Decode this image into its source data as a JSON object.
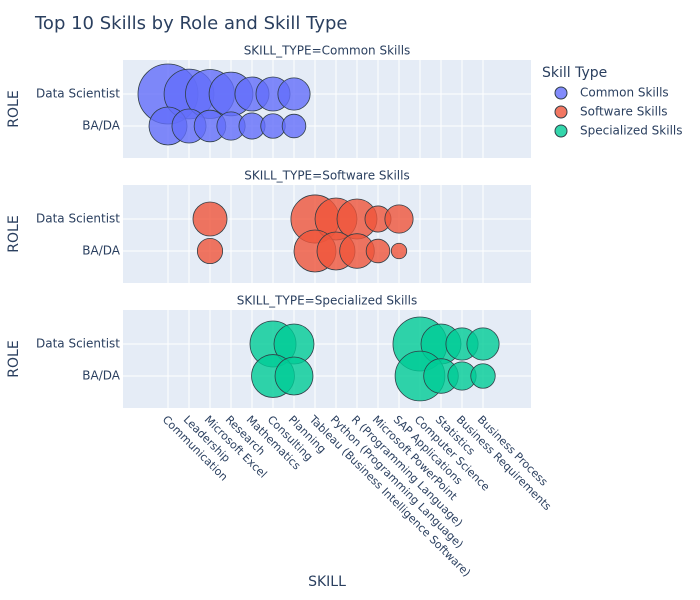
{
  "chart_data": {
    "type": "bubble",
    "title": "Top 10 Skills by Role and Skill Type",
    "x_label": "SKILL",
    "y_label": "ROLE",
    "legend_title": "Skill Type",
    "legend_position": "right",
    "grid": true,
    "categories": [
      "Communication",
      "Leadership",
      "Microsoft Excel",
      "Research",
      "Mathematics",
      "Consulting",
      "Planning",
      "Tableau (Business Intelligence Software)",
      "Python (Programming Language)",
      "R (Programming Language)",
      "Microsoft PowerPoint",
      "SAP Applications",
      "Computer Science",
      "Statistics",
      "Business Requirements",
      "Business Process"
    ],
    "roles": [
      "Data Scientist",
      "BA/DA"
    ],
    "series": [
      {
        "name": "Common Skills",
        "facet_title": "SKILL_TYPE=Common Skills",
        "color": "#636efa",
        "x": [
          "Communication",
          "Leadership",
          "Microsoft Excel",
          "Research",
          "Mathematics",
          "Consulting",
          "Planning",
          "Communication",
          "Leadership",
          "Microsoft Excel",
          "Research",
          "Mathematics",
          "Consulting",
          "Planning"
        ],
        "y": [
          "Data Scientist",
          "Data Scientist",
          "Data Scientist",
          "Data Scientist",
          "Data Scientist",
          "Data Scientist",
          "Data Scientist",
          "BA/DA",
          "BA/DA",
          "BA/DA",
          "BA/DA",
          "BA/DA",
          "BA/DA",
          "BA/DA"
        ],
        "size": [
          900,
          620,
          600,
          480,
          290,
          290,
          260,
          360,
          290,
          250,
          200,
          170,
          150,
          140
        ]
      },
      {
        "name": "Software Skills",
        "facet_title": "SKILL_TYPE=Software Skills",
        "color": "#ef553b",
        "x": [
          "Microsoft Excel",
          "Tableau (Business Intelligence Software)",
          "Python (Programming Language)",
          "R (Programming Language)",
          "Microsoft PowerPoint",
          "SAP Applications",
          "Microsoft Excel",
          "Tableau (Business Intelligence Software)",
          "Python (Programming Language)",
          "R (Programming Language)",
          "Microsoft PowerPoint",
          "SAP Applications"
        ],
        "y": [
          "Data Scientist",
          "Data Scientist",
          "Data Scientist",
          "Data Scientist",
          "Data Scientist",
          "Data Scientist",
          "BA/DA",
          "BA/DA",
          "BA/DA",
          "BA/DA",
          "BA/DA",
          "BA/DA"
        ],
        "size": [
          290,
          580,
          440,
          400,
          170,
          200,
          160,
          440,
          360,
          300,
          140,
          60
        ]
      },
      {
        "name": "Specialized Skills",
        "facet_title": "SKILL_TYPE=Specialized Skills",
        "color": "#00cc96",
        "x": [
          "Consulting",
          "Planning",
          "Computer Science",
          "Statistics",
          "Business Requirements",
          "Business Process",
          "Consulting",
          "Planning",
          "Computer Science",
          "Statistics",
          "Business Requirements",
          "Business Process"
        ],
        "y": [
          "Data Scientist",
          "Data Scientist",
          "Data Scientist",
          "Data Scientist",
          "Data Scientist",
          "Data Scientist",
          "BA/DA",
          "BA/DA",
          "BA/DA",
          "BA/DA",
          "BA/DA",
          "BA/DA"
        ],
        "size": [
          530,
          400,
          730,
          400,
          260,
          260,
          460,
          360,
          620,
          300,
          200,
          150
        ]
      }
    ]
  }
}
